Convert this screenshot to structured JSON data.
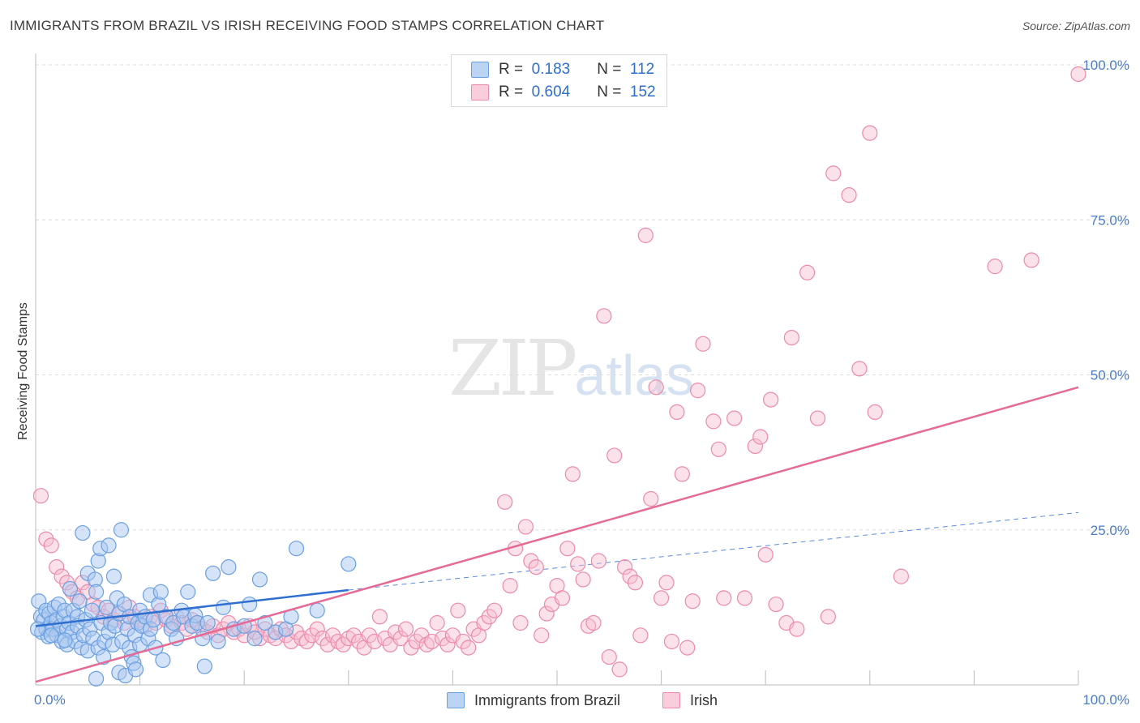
{
  "title": "IMMIGRANTS FROM BRAZIL VS IRISH RECEIVING FOOD STAMPS CORRELATION CHART",
  "source": "Source: ZipAtlas.com",
  "watermark": {
    "zip": "ZIP",
    "atlas": "atlas"
  },
  "legend": {
    "brazil": {
      "r_label": "R =",
      "r_value": "0.183",
      "n_label": "N =",
      "n_value": "112"
    },
    "irish": {
      "r_label": "R =",
      "r_value": "0.604",
      "n_label": "N =",
      "n_value": "152"
    }
  },
  "bottom_legend": {
    "brazil": "Immigrants from Brazil",
    "irish": "Irish"
  },
  "colors": {
    "brazil_fill": "#a9c8f0",
    "brazil_stroke": "#6a9fe0",
    "brazil_line": "#2f6fd0",
    "irish_fill": "#f7bcd0",
    "irish_stroke": "#eb8aab",
    "irish_line": "#e56a95",
    "grid": "#dcdcdc",
    "tick_text": "#4a7cc7"
  },
  "chart_data": {
    "type": "scatter",
    "title": "IMMIGRANTS FROM BRAZIL VS IRISH RECEIVING FOOD STAMPS CORRELATION CHART",
    "xlabel": "",
    "ylabel": "Receiving Food Stamps",
    "xlim": [
      0,
      100
    ],
    "ylim": [
      0,
      100
    ],
    "x_tick_labels": [
      {
        "value": 0,
        "label": "0.0%"
      },
      {
        "value": 100,
        "label": "100.0%"
      }
    ],
    "y_tick_labels": [
      {
        "value": 25,
        "label": "25.0%"
      },
      {
        "value": 50,
        "label": "50.0%"
      },
      {
        "value": 75,
        "label": "75.0%"
      },
      {
        "value": 100,
        "label": "100.0%"
      }
    ],
    "series": [
      {
        "name": "Immigrants from Brazil",
        "trend": {
          "x0": 0,
          "y0": 9.5,
          "x1": 30,
          "y1": 15.3,
          "extended_x1": 100,
          "extended_y1": 27.8
        },
        "points": [
          [
            0.3,
            13.5
          ],
          [
            0.5,
            11
          ],
          [
            0.6,
            8.5
          ],
          [
            0.8,
            10.5
          ],
          [
            1,
            12
          ],
          [
            1,
            9
          ],
          [
            1.2,
            7.8
          ],
          [
            1.3,
            11.5
          ],
          [
            1.5,
            10
          ],
          [
            1.6,
            9
          ],
          [
            1.8,
            12.5
          ],
          [
            2,
            8
          ],
          [
            2,
            10.5
          ],
          [
            2.2,
            13
          ],
          [
            2.4,
            9.5
          ],
          [
            2.5,
            7
          ],
          [
            2.7,
            11
          ],
          [
            2.8,
            12
          ],
          [
            3,
            9
          ],
          [
            3,
            6.5
          ],
          [
            3.2,
            10
          ],
          [
            3.3,
            15.5
          ],
          [
            3.5,
            8.5
          ],
          [
            3.6,
            12
          ],
          [
            3.8,
            7
          ],
          [
            4,
            11
          ],
          [
            4,
            9.5
          ],
          [
            4.2,
            13.5
          ],
          [
            4.4,
            6
          ],
          [
            4.5,
            24.5
          ],
          [
            4.6,
            8
          ],
          [
            4.8,
            10.5
          ],
          [
            5,
            5.5
          ],
          [
            5,
            18
          ],
          [
            5.2,
            9
          ],
          [
            5.4,
            12
          ],
          [
            5.5,
            7.5
          ],
          [
            5.7,
            17
          ],
          [
            5.8,
            15
          ],
          [
            6,
            6
          ],
          [
            6,
            20
          ],
          [
            6.2,
            22
          ],
          [
            6.3,
            10
          ],
          [
            6.5,
            4.5
          ],
          [
            6.6,
            7
          ],
          [
            6.8,
            12.5
          ],
          [
            7,
            8.5
          ],
          [
            7,
            22.5
          ],
          [
            7.2,
            10
          ],
          [
            7.4,
            6.5
          ],
          [
            7.5,
            17.5
          ],
          [
            7.6,
            9.5
          ],
          [
            7.8,
            14
          ],
          [
            8,
            2
          ],
          [
            8,
            11.5
          ],
          [
            8.2,
            25
          ],
          [
            8.3,
            7
          ],
          [
            8.5,
            13
          ],
          [
            8.6,
            1.5
          ],
          [
            8.8,
            9
          ],
          [
            9,
            6
          ],
          [
            9,
            11
          ],
          [
            9.2,
            4.5
          ],
          [
            9.4,
            3.5
          ],
          [
            9.5,
            8
          ],
          [
            9.6,
            2.5
          ],
          [
            9.8,
            10
          ],
          [
            10,
            6.5
          ],
          [
            10,
            12
          ],
          [
            10.2,
            9.5
          ],
          [
            10.5,
            11
          ],
          [
            10.8,
            7.5
          ],
          [
            11,
            9
          ],
          [
            11,
            14.5
          ],
          [
            11.3,
            10.5
          ],
          [
            11.5,
            6
          ],
          [
            11.8,
            13
          ],
          [
            12,
            15
          ],
          [
            12.2,
            4
          ],
          [
            12.5,
            11
          ],
          [
            13,
            9
          ],
          [
            13.2,
            10
          ],
          [
            13.5,
            7.5
          ],
          [
            14,
            12
          ],
          [
            14.2,
            11
          ],
          [
            14.6,
            15
          ],
          [
            15,
            9.5
          ],
          [
            15.3,
            11.2
          ],
          [
            15.5,
            10
          ],
          [
            16,
            7.5
          ],
          [
            16.5,
            10
          ],
          [
            17,
            18
          ],
          [
            17.5,
            7
          ],
          [
            18,
            12.5
          ],
          [
            18.5,
            19
          ],
          [
            19,
            9
          ],
          [
            20,
            9.5
          ],
          [
            20.5,
            13
          ],
          [
            21,
            7.5
          ],
          [
            21.5,
            17
          ],
          [
            22,
            10
          ],
          [
            23,
            8.5
          ],
          [
            24,
            9
          ],
          [
            24.5,
            11
          ],
          [
            25,
            22
          ],
          [
            27,
            12
          ],
          [
            30,
            19.5
          ],
          [
            0.2,
            9
          ],
          [
            1.5,
            8
          ],
          [
            2.8,
            7.2
          ],
          [
            16.2,
            3
          ],
          [
            5.8,
            1
          ]
        ]
      },
      {
        "name": "Irish",
        "trend": {
          "x0": 0,
          "y0": 0.5,
          "x1": 100,
          "y1": 48
        },
        "points": [
          [
            0.5,
            30.5
          ],
          [
            1,
            23.5
          ],
          [
            1.5,
            22.5
          ],
          [
            2,
            19
          ],
          [
            2.5,
            17.5
          ],
          [
            3,
            16.5
          ],
          [
            3.5,
            15
          ],
          [
            4,
            14
          ],
          [
            4.5,
            16.5
          ],
          [
            5,
            15
          ],
          [
            5.5,
            13
          ],
          [
            6,
            12.5
          ],
          [
            6.5,
            11
          ],
          [
            7,
            12
          ],
          [
            7.5,
            10.5
          ],
          [
            8,
            11.5
          ],
          [
            8.5,
            10
          ],
          [
            9,
            12.5
          ],
          [
            9.5,
            11
          ],
          [
            10,
            10.5
          ],
          [
            10.5,
            9.5
          ],
          [
            11,
            11
          ],
          [
            11.5,
            10
          ],
          [
            12,
            12
          ],
          [
            12.5,
            10.5
          ],
          [
            13,
            9.5
          ],
          [
            13.5,
            11
          ],
          [
            14,
            10
          ],
          [
            14.5,
            9
          ],
          [
            15,
            10.5
          ],
          [
            15.5,
            10
          ],
          [
            16,
            9
          ],
          [
            16.5,
            8.5
          ],
          [
            17,
            9.5
          ],
          [
            17.5,
            8
          ],
          [
            18,
            9
          ],
          [
            18.5,
            10
          ],
          [
            19,
            8.5
          ],
          [
            19.5,
            9
          ],
          [
            20,
            8
          ],
          [
            20.5,
            9.5
          ],
          [
            21,
            8.5
          ],
          [
            21.5,
            7.5
          ],
          [
            22,
            9
          ],
          [
            22.5,
            8
          ],
          [
            23,
            7.5
          ],
          [
            23.5,
            9
          ],
          [
            24,
            8
          ],
          [
            24.5,
            7
          ],
          [
            25,
            8.5
          ],
          [
            25.5,
            7.5
          ],
          [
            26,
            7
          ],
          [
            26.5,
            8
          ],
          [
            27,
            9
          ],
          [
            27.5,
            7.5
          ],
          [
            28,
            6.5
          ],
          [
            28.5,
            8
          ],
          [
            29,
            7
          ],
          [
            29.5,
            6.5
          ],
          [
            30,
            7.5
          ],
          [
            30.5,
            8
          ],
          [
            31,
            7
          ],
          [
            31.5,
            6
          ],
          [
            32,
            8
          ],
          [
            32.5,
            7
          ],
          [
            33,
            11
          ],
          [
            33.5,
            7.5
          ],
          [
            34,
            6.5
          ],
          [
            34.5,
            8.5
          ],
          [
            35,
            7.5
          ],
          [
            35.5,
            9
          ],
          [
            36,
            6
          ],
          [
            36.5,
            7
          ],
          [
            37,
            8
          ],
          [
            37.5,
            6.5
          ],
          [
            38,
            7
          ],
          [
            38.5,
            10
          ],
          [
            39,
            7.5
          ],
          [
            39.5,
            6.5
          ],
          [
            40,
            8
          ],
          [
            40.5,
            12
          ],
          [
            41,
            7
          ],
          [
            41.5,
            6
          ],
          [
            42,
            9
          ],
          [
            42.5,
            8
          ],
          [
            43,
            10
          ],
          [
            43.5,
            11
          ],
          [
            44,
            12
          ],
          [
            45,
            29.5
          ],
          [
            45.5,
            16
          ],
          [
            46,
            22
          ],
          [
            46.5,
            10
          ],
          [
            47,
            25.5
          ],
          [
            47.5,
            20
          ],
          [
            48,
            19
          ],
          [
            48.5,
            8
          ],
          [
            49,
            11.5
          ],
          [
            49.5,
            13
          ],
          [
            50,
            16
          ],
          [
            50.5,
            14
          ],
          [
            51,
            22
          ],
          [
            51.5,
            34
          ],
          [
            52,
            19.5
          ],
          [
            52.5,
            17
          ],
          [
            53,
            9.5
          ],
          [
            53.5,
            10
          ],
          [
            54,
            20
          ],
          [
            54.5,
            59.5
          ],
          [
            55,
            4.5
          ],
          [
            55.5,
            37
          ],
          [
            56,
            2.5
          ],
          [
            56.5,
            19
          ],
          [
            57,
            17.5
          ],
          [
            57.5,
            16.5
          ],
          [
            58,
            8
          ],
          [
            58.5,
            72.5
          ],
          [
            59,
            30
          ],
          [
            59.5,
            48
          ],
          [
            60,
            14
          ],
          [
            60.5,
            16.5
          ],
          [
            61,
            7
          ],
          [
            61.5,
            44
          ],
          [
            62,
            34
          ],
          [
            62.5,
            6
          ],
          [
            63,
            13.5
          ],
          [
            63.5,
            47.5
          ],
          [
            64,
            55
          ],
          [
            65,
            42.5
          ],
          [
            65.5,
            38
          ],
          [
            66,
            14
          ],
          [
            67,
            43
          ],
          [
            68,
            14
          ],
          [
            69,
            38.5
          ],
          [
            69.5,
            40
          ],
          [
            70,
            21
          ],
          [
            70.5,
            46
          ],
          [
            71,
            13
          ],
          [
            72,
            10
          ],
          [
            72.5,
            56
          ],
          [
            73,
            9
          ],
          [
            74,
            66.5
          ],
          [
            75,
            43
          ],
          [
            76,
            11
          ],
          [
            76.5,
            82.5
          ],
          [
            78,
            79
          ],
          [
            79,
            51
          ],
          [
            80,
            89
          ],
          [
            80.5,
            44
          ],
          [
            83,
            17.5
          ],
          [
            92,
            67.5
          ],
          [
            95.5,
            68.5
          ],
          [
            100,
            98.5
          ]
        ]
      }
    ]
  }
}
